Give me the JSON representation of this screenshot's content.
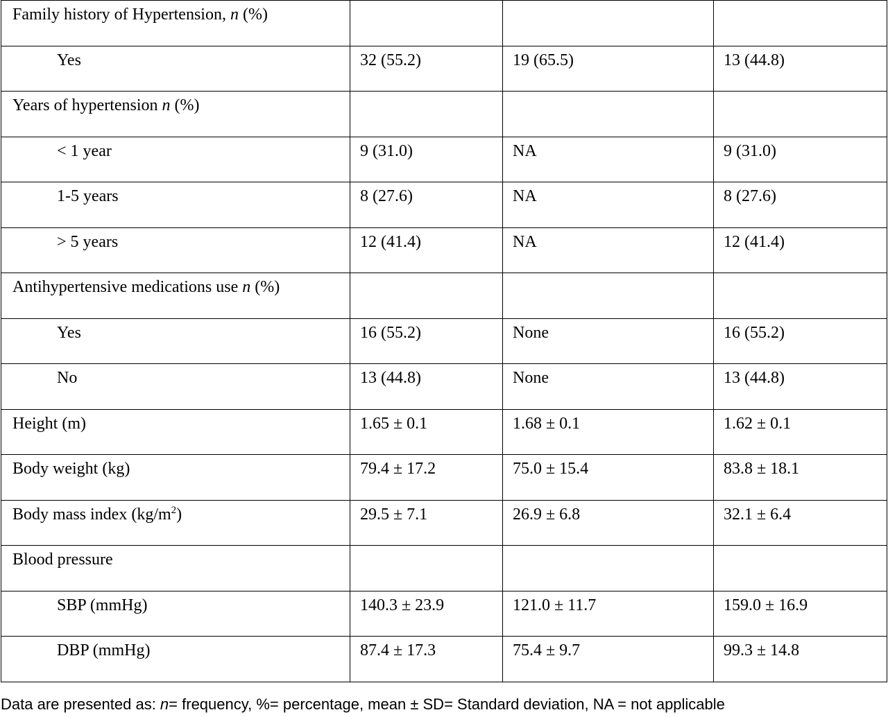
{
  "table": {
    "rows": [
      {
        "label": [
          {
            "text": "Family history of Hypertension, "
          },
          {
            "text": "n",
            "italic": true
          },
          {
            "text": " (%)"
          }
        ]
      },
      {
        "label": [
          {
            "text": "Yes"
          }
        ],
        "indent": true,
        "cells": [
          "32 (55.2)",
          "19 (65.5)",
          "13 (44.8)"
        ]
      },
      {
        "label": [
          {
            "text": "Years of hypertension "
          },
          {
            "text": "n",
            "italic": true
          },
          {
            "text": " (%)"
          }
        ]
      },
      {
        "label": [
          {
            "text": "< 1 year"
          }
        ],
        "indent": true,
        "cells": [
          "9 (31.0)",
          "NA",
          "9 (31.0)"
        ]
      },
      {
        "label": [
          {
            "text": "1-5 years"
          }
        ],
        "indent": true,
        "cells": [
          "8 (27.6)",
          "NA",
          "8 (27.6)"
        ]
      },
      {
        "label": [
          {
            "text": "> 5 years"
          }
        ],
        "indent": true,
        "cells": [
          "12 (41.4)",
          "NA",
          "12 (41.4)"
        ]
      },
      {
        "label": [
          {
            "text": "Antihypertensive medications use "
          },
          {
            "text": "n",
            "italic": true
          },
          {
            "text": " (%)"
          }
        ]
      },
      {
        "label": [
          {
            "text": "Yes"
          }
        ],
        "indent": true,
        "cells": [
          "16 (55.2)",
          "None",
          "16 (55.2)"
        ]
      },
      {
        "label": [
          {
            "text": "No"
          }
        ],
        "indent": true,
        "cells": [
          "13 (44.8)",
          "None",
          "13 (44.8)"
        ]
      },
      {
        "label": [
          {
            "text": "Height (m)"
          }
        ],
        "cells": [
          "1.65 ± 0.1",
          "1.68 ± 0.1",
          "1.62 ± 0.1"
        ]
      },
      {
        "label": [
          {
            "text": "Body weight (kg)"
          }
        ],
        "cells": [
          "79.4 ± 17.2",
          "75.0 ± 15.4",
          "83.8 ± 18.1"
        ]
      },
      {
        "label": [
          {
            "text": "Body mass index (kg/m"
          },
          {
            "text": "2",
            "sup": true
          },
          {
            "text": ")"
          }
        ],
        "cells": [
          "29.5 ± 7.1",
          "26.9 ± 6.8",
          "32.1 ± 6.4"
        ]
      },
      {
        "label": [
          {
            "text": "Blood pressure"
          }
        ]
      },
      {
        "label": [
          {
            "text": "SBP (mmHg)"
          }
        ],
        "indent": true,
        "cells": [
          "140.3 ± 23.9",
          "121.0 ± 11.7",
          "159.0 ± 16.9"
        ]
      },
      {
        "label": [
          {
            "text": "DBP (mmHg)"
          }
        ],
        "indent": true,
        "cells": [
          "87.4 ± 17.3",
          "75.4 ± 9.7",
          "99.3 ± 14.8"
        ]
      }
    ]
  },
  "footnote": [
    {
      "text": "Data are presented as: "
    },
    {
      "text": "n",
      "italic": true
    },
    {
      "text": "= frequency, %= percentage, mean ± SD= Standard deviation, NA = not applicable"
    }
  ]
}
